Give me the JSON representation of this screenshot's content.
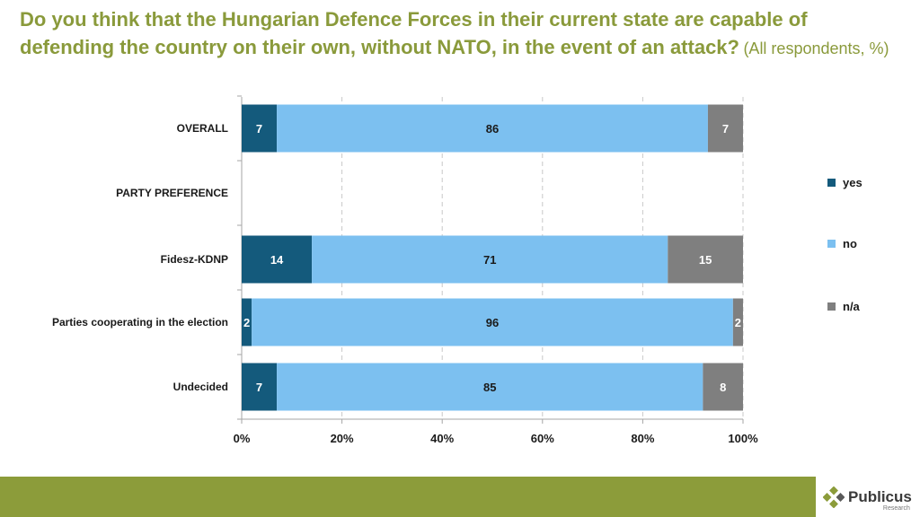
{
  "title": {
    "main": "Do you think that the Hungarian  Defence Forces in their current state are capable of defending the country on their own, without NATO, in the event of an attack?",
    "sub": "(All respondents, %)"
  },
  "colors": {
    "yes": "#145a7c",
    "no": "#7cc0f0",
    "na": "#7f7f7f",
    "title": "#8a9a3b",
    "footer": "#8c9c3a"
  },
  "chart_data": {
    "type": "bar",
    "orientation": "horizontal",
    "stacked": true,
    "categories": [
      "OVERALL",
      "PARTY PREFERENCE",
      "Fidesz-KDNP",
      "Parties cooperating  in the election",
      "Undecided"
    ],
    "series": [
      {
        "name": "yes",
        "values": [
          7,
          null,
          14,
          2,
          7
        ]
      },
      {
        "name": "no",
        "values": [
          86,
          null,
          71,
          96,
          85
        ]
      },
      {
        "name": "n/a",
        "values": [
          7,
          null,
          15,
          2,
          8
        ]
      }
    ],
    "xlim": [
      0,
      100
    ],
    "xticks": [
      "0%",
      "20%",
      "40%",
      "60%",
      "80%",
      "100%"
    ],
    "grid": "vertical dashed",
    "legend_position": "right"
  },
  "logo": {
    "name": "Publicus",
    "sub": "Research"
  }
}
